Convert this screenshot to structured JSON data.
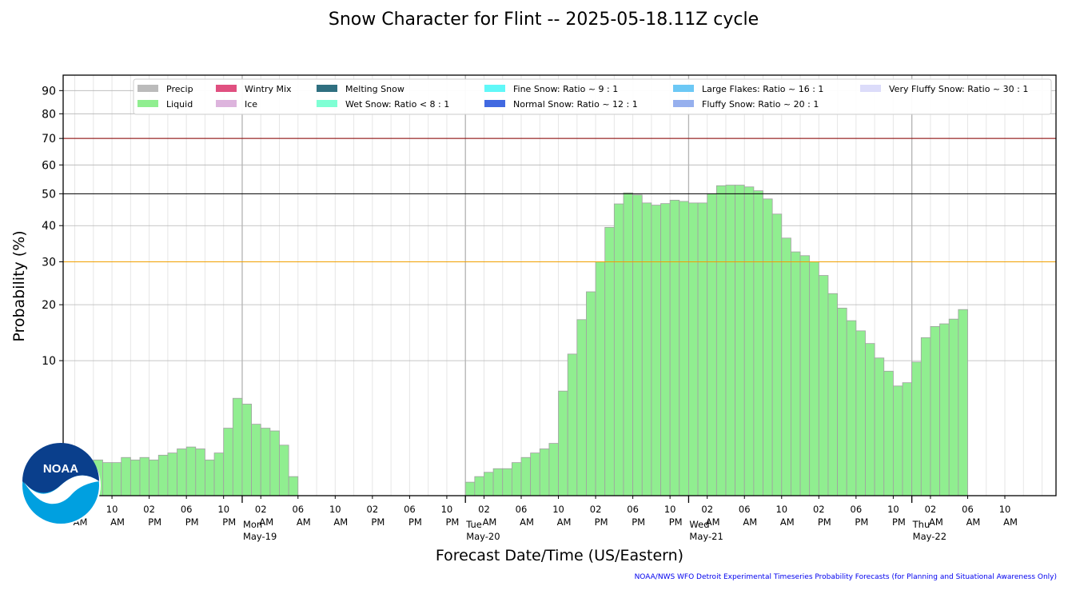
{
  "chart_data": {
    "type": "bar",
    "title": "Snow Character for Flint -- 2025-05-18.11Z cycle",
    "xlabel": "Forecast Date/Time (US/Eastern)",
    "ylabel": "Probability (%)",
    "y_scale": "sqrt",
    "ylim": [
      0,
      97
    ],
    "yticks": [
      10,
      20,
      30,
      40,
      50,
      60,
      70,
      80,
      90
    ],
    "x_range_hours": [
      -5.25,
      101.5
    ],
    "grid": true,
    "legend_position": "top",
    "reference_lines": [
      {
        "y": 70,
        "color": "#8b0000"
      },
      {
        "y": 50,
        "color": "#000000"
      },
      {
        "y": 30,
        "color": "#f0a000"
      }
    ],
    "x_tick_labels": [
      {
        "h": -4,
        "time": "06",
        "ampm": "AM"
      },
      {
        "h": 0,
        "time": "10",
        "ampm": "AM"
      },
      {
        "h": 4,
        "time": "02",
        "ampm": "PM"
      },
      {
        "h": 8,
        "time": "06",
        "ampm": "PM"
      },
      {
        "h": 12,
        "time": "10",
        "ampm": "PM"
      },
      {
        "h": 16,
        "time": "02",
        "ampm": "AM"
      },
      {
        "h": 20,
        "time": "06",
        "ampm": "AM"
      },
      {
        "h": 24,
        "time": "10",
        "ampm": "AM"
      },
      {
        "h": 28,
        "time": "02",
        "ampm": "PM"
      },
      {
        "h": 32,
        "time": "06",
        "ampm": "PM"
      },
      {
        "h": 36,
        "time": "10",
        "ampm": "PM"
      },
      {
        "h": 40,
        "time": "02",
        "ampm": "AM"
      },
      {
        "h": 44,
        "time": "06",
        "ampm": "AM"
      },
      {
        "h": 48,
        "time": "10",
        "ampm": "AM"
      },
      {
        "h": 52,
        "time": "02",
        "ampm": "PM"
      },
      {
        "h": 56,
        "time": "06",
        "ampm": "PM"
      },
      {
        "h": 60,
        "time": "10",
        "ampm": "PM"
      },
      {
        "h": 64,
        "time": "02",
        "ampm": "AM"
      },
      {
        "h": 68,
        "time": "06",
        "ampm": "AM"
      },
      {
        "h": 72,
        "time": "10",
        "ampm": "AM"
      },
      {
        "h": 76,
        "time": "02",
        "ampm": "PM"
      },
      {
        "h": 80,
        "time": "06",
        "ampm": "PM"
      },
      {
        "h": 84,
        "time": "10",
        "ampm": "PM"
      },
      {
        "h": 88,
        "time": "02",
        "ampm": "AM"
      },
      {
        "h": 92,
        "time": "06",
        "ampm": "AM"
      },
      {
        "h": 96,
        "time": "10",
        "ampm": "AM"
      }
    ],
    "day_labels": [
      {
        "h": 14,
        "weekday": "Mon",
        "date": "May-19"
      },
      {
        "h": 38,
        "weekday": "Tue",
        "date": "May-20"
      },
      {
        "h": 62,
        "weekday": "Wed",
        "date": "May-21"
      },
      {
        "h": 86,
        "weekday": "Thu",
        "date": "May-22"
      }
    ],
    "legend": [
      {
        "name": "Precip",
        "color": "#bbbbbb"
      },
      {
        "name": "Liquid",
        "color": "#90ee90"
      },
      {
        "name": "Wintry Mix",
        "color": "#e05080"
      },
      {
        "name": "Ice",
        "color": "#ddb4dd"
      },
      {
        "name": "Melting Snow",
        "color": "#2f6f80"
      },
      {
        "name": "Wet Snow: Ratio < 8 : 1",
        "color": "#7fffd4"
      },
      {
        "name": "Fine Snow: Ratio ~ 9 : 1",
        "color": "#60f8f8"
      },
      {
        "name": "Normal Snow: Ratio ~ 12 : 1",
        "color": "#4169e1"
      },
      {
        "name": "Large Flakes: Ratio ~ 16 : 1",
        "color": "#6cc8f5"
      },
      {
        "name": "Fluffy Snow: Ratio ~ 20 : 1",
        "color": "#96b0ee"
      },
      {
        "name": "Very Fluffy Snow: Ratio ~ 30 : 1",
        "color": "#dcdcfa"
      }
    ],
    "series": [
      {
        "name": "Liquid",
        "color": "#90ee90",
        "start_hour": -4,
        "bar_width_hours": 1,
        "values": [
          0.5,
          0.5,
          0.7,
          0.6,
          0.6,
          0.8,
          0.7,
          0.8,
          0.7,
          0.9,
          1.0,
          1.2,
          1.3,
          1.2,
          0.7,
          1.0,
          2.5,
          5.2,
          4.6,
          2.8,
          2.5,
          2.3,
          1.4,
          0.2,
          0,
          0,
          0,
          0,
          0,
          0,
          0,
          0,
          0,
          0,
          0,
          0,
          0,
          0,
          0,
          0,
          0,
          0,
          0.1,
          0.2,
          0.3,
          0.4,
          0.4,
          0.6,
          0.8,
          1.0,
          1.2,
          1.5,
          6.0,
          11.0,
          17.0,
          22.8,
          30.0,
          39.5,
          46.7,
          50.3,
          49.6,
          47.0,
          46.3,
          46.8,
          47.9,
          47.5,
          47.0,
          47.0,
          50.0,
          52.7,
          52.9,
          52.9,
          52.3,
          51.0,
          48.3,
          43.5,
          36.4,
          32.6,
          31.6,
          30.0,
          26.6,
          22.4,
          19.3,
          16.8,
          14.9,
          12.7,
          10.4,
          8.5,
          6.6,
          7.0,
          9.8,
          13.7,
          15.7,
          16.2,
          17.1,
          19.0
        ]
      }
    ],
    "marker_ticks_hours": [
      14,
      38,
      62,
      86
    ]
  },
  "footer": "NOAA/NWS WFO Detroit Experimental Timeseries Probability Forecasts (for Planning and Situational Awareness Only)",
  "logo": {
    "text": "NOAA",
    "colors": {
      "dark": "#0a3f8c",
      "light": "#00a0e0"
    }
  }
}
